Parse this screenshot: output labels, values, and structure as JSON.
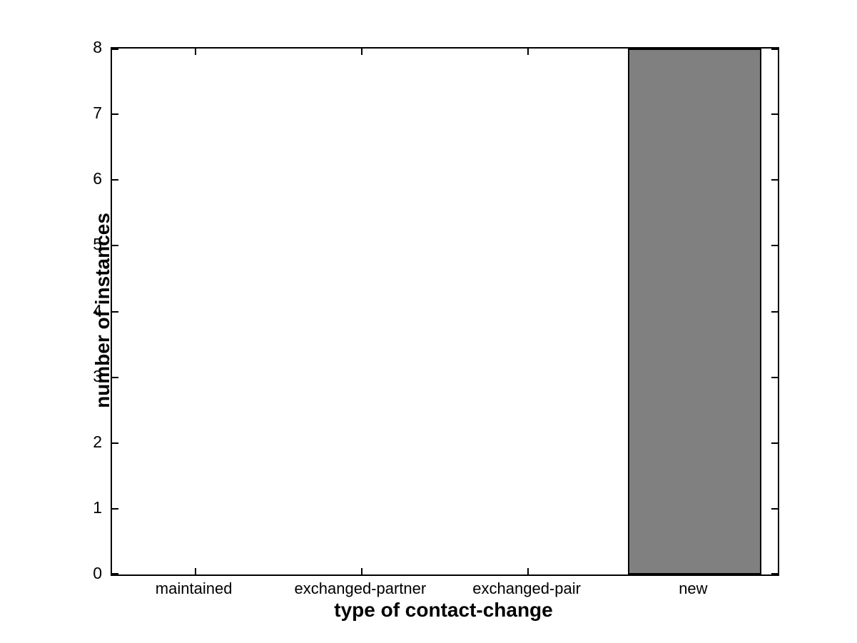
{
  "chart_data": {
    "type": "bar",
    "categories": [
      "maintained",
      "exchanged-partner",
      "exchanged-pair",
      "new"
    ],
    "values": [
      0,
      0,
      0,
      8
    ],
    "title": "",
    "xlabel": "type of contact-change",
    "ylabel": "number of instances",
    "ylim": [
      0,
      8
    ],
    "yticks": [
      0,
      1,
      2,
      3,
      4,
      5,
      6,
      7,
      8
    ],
    "ytick_labels": [
      "0",
      "1",
      "2",
      "3",
      "4",
      "5",
      "6",
      "7",
      "8"
    ],
    "bar_width_fraction": 0.8,
    "grid": false,
    "legend": null,
    "style": "matlab-box-inward-ticks",
    "colors": {
      "bar_fill": "#808080",
      "bar_edge": "#000000",
      "axis": "#000000",
      "background": "#ffffff",
      "text": "#000000"
    }
  }
}
